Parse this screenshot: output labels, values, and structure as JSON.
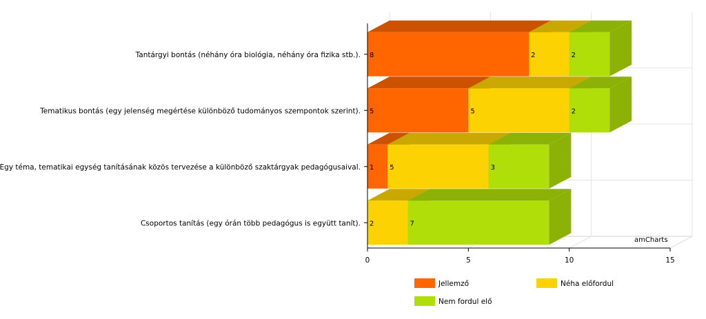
{
  "chart_data": {
    "type": "bar",
    "orientation": "horizontal",
    "stacked": true,
    "three_d": true,
    "categories": [
      "Tantárgyi bontás (néhány óra biológia, néhány óra fizika stb.).",
      "Tematikus bontás (egy jelenség megértése különböző tudományos szempontok szerint).",
      "Egy téma, tematikai egység tanításának közös tervezése a különböző szaktárgyak pedagógusaival.",
      "Csoportos tanítás (egy órán több pedagógus is együtt tanít)."
    ],
    "series": [
      {
        "name": "Jellemző",
        "color": "#FF6600",
        "top_color": "#CC5200",
        "side_color": "#CC5200",
        "values": [
          8,
          5,
          1,
          0
        ]
      },
      {
        "name": "Néha előfordul",
        "color": "#FCD202",
        "top_color": "#C9A802",
        "side_color": "#C9A802",
        "values": [
          2,
          5,
          5,
          2
        ]
      },
      {
        "name": "Nem fordul elő",
        "color": "#B0DE09",
        "top_color": "#8DB207",
        "side_color": "#8DB207",
        "values": [
          2,
          2,
          3,
          7
        ]
      }
    ],
    "x_ticks": [
      0,
      5,
      10,
      15
    ],
    "xlim": [
      0,
      15
    ],
    "grid": true,
    "legend_position": "bottom",
    "title": "",
    "xlabel": "",
    "ylabel": ""
  },
  "credit": "amCharts"
}
